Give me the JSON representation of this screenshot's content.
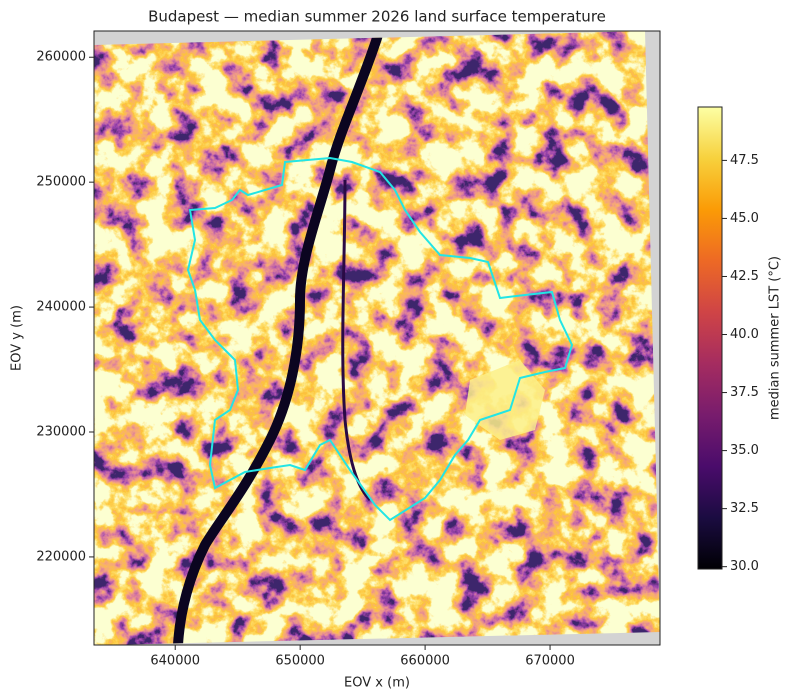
{
  "chart_data": {
    "type": "image",
    "title": "Budapest — median summer 2026 land surface temperature",
    "x_label": "EOV x (m)",
    "y_label": "EOV y (m)",
    "xlim": [
      633500,
      678800
    ],
    "ylim": [
      212950,
      262100
    ],
    "xticks": [
      640000,
      650000,
      660000,
      670000
    ],
    "yticks": [
      220000,
      230000,
      240000,
      250000,
      260000
    ],
    "colormap": "inferno",
    "colorbar_label": "median summer LST (°C)",
    "clim": [
      29.9,
      49.8
    ],
    "colorbar_ticks": [
      {
        "value": 30,
        "label": "30.0"
      },
      32.5,
      {
        "value": 35,
        "label": "35.0"
      },
      37.5,
      {
        "value": 40,
        "label": "40.0"
      },
      42.5,
      {
        "value": 45,
        "label": "45.0"
      },
      47.5
    ],
    "outline_color": "#22e5e5"
  }
}
